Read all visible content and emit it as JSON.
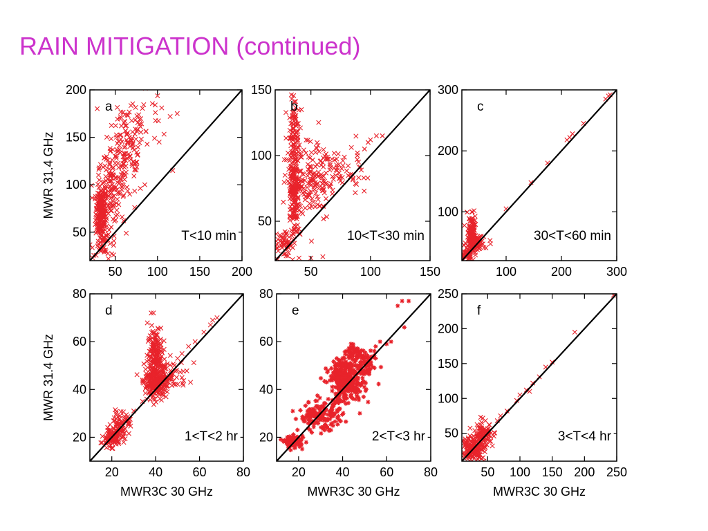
{
  "slide": {
    "title": "RAIN MITIGATION (continued)",
    "title_color": "#cc33cc"
  },
  "colors": {
    "marker": "#e8232b",
    "diagonal": "#000000",
    "frame": "#000000"
  },
  "chart_data": [
    {
      "type": "scatter",
      "panel": "a",
      "annotation": "T<10 min",
      "marker": "x",
      "xlabel": "",
      "ylabel": "MWR 31.4 GHz",
      "xlim": [
        20,
        200
      ],
      "ylim": [
        20,
        200
      ],
      "xticks": [
        50,
        100,
        150,
        200
      ],
      "yticks": [
        50,
        100,
        150,
        200
      ],
      "diagonal": true,
      "clusters": [
        {
          "x": 33,
          "y": 70,
          "sx": 3,
          "sy": 14,
          "n": 200
        },
        {
          "x": 45,
          "y": 95,
          "sx": 8,
          "sy": 18,
          "n": 120
        },
        {
          "x": 62,
          "y": 130,
          "sx": 12,
          "sy": 22,
          "n": 110
        },
        {
          "x": 80,
          "y": 165,
          "sx": 18,
          "sy": 15,
          "n": 45
        },
        {
          "x": 38,
          "y": 38,
          "sx": 8,
          "sy": 6,
          "n": 30
        }
      ],
      "points": [
        [
          105,
          181
        ],
        [
          115,
          172
        ],
        [
          102,
          145
        ],
        [
          118,
          115
        ],
        [
          85,
          100
        ],
        [
          42,
          22
        ],
        [
          48,
          26
        ],
        [
          33,
          30
        ],
        [
          23,
          23
        ],
        [
          60,
          62
        ],
        [
          73,
          76
        ]
      ]
    },
    {
      "type": "scatter",
      "panel": "b",
      "annotation": "10<T<30 min",
      "marker": "x",
      "xlabel": "",
      "ylabel": "",
      "xlim": [
        20,
        150
      ],
      "ylim": [
        20,
        150
      ],
      "xticks": [
        50,
        100,
        150
      ],
      "yticks": [
        50,
        100,
        150
      ],
      "diagonal": true,
      "clusters": [
        {
          "x": 36,
          "y": 72,
          "sx": 2.5,
          "sy": 16,
          "n": 200
        },
        {
          "x": 36,
          "y": 118,
          "sx": 2.5,
          "sy": 12,
          "n": 80
        },
        {
          "x": 52,
          "y": 80,
          "sx": 10,
          "sy": 14,
          "n": 150
        },
        {
          "x": 75,
          "y": 90,
          "sx": 12,
          "sy": 10,
          "n": 60
        },
        {
          "x": 28,
          "y": 32,
          "sx": 5,
          "sy": 5,
          "n": 50
        }
      ],
      "points": [
        [
          98,
          110
        ],
        [
          100,
          112
        ],
        [
          105,
          115
        ],
        [
          110,
          115
        ],
        [
          95,
          105
        ],
        [
          89,
          100
        ],
        [
          40,
          22
        ],
        [
          50,
          22
        ],
        [
          60,
          23
        ],
        [
          22,
          21
        ],
        [
          42,
          135
        ]
      ]
    },
    {
      "type": "scatter",
      "panel": "c",
      "annotation": "30<T<60 min",
      "marker": "x",
      "xlabel": "",
      "ylabel": "",
      "xlim": [
        20,
        300
      ],
      "ylim": [
        20,
        300
      ],
      "xticks": [
        100,
        200,
        300
      ],
      "yticks": [
        100,
        200,
        300
      ],
      "diagonal": true,
      "clusters": [
        {
          "x": 38,
          "y": 65,
          "sx": 4,
          "sy": 14,
          "n": 90
        },
        {
          "x": 45,
          "y": 48,
          "sx": 8,
          "sy": 7,
          "n": 80
        },
        {
          "x": 32,
          "y": 32,
          "sx": 5,
          "sy": 5,
          "n": 40
        }
      ],
      "points": [
        [
          100,
          105
        ],
        [
          145,
          148
        ],
        [
          175,
          180
        ],
        [
          210,
          218
        ],
        [
          215,
          222
        ],
        [
          220,
          228
        ],
        [
          240,
          245
        ],
        [
          280,
          285
        ],
        [
          285,
          290
        ],
        [
          288,
          292
        ],
        [
          38,
          100
        ],
        [
          42,
          102
        ],
        [
          55,
          60
        ]
      ]
    },
    {
      "type": "scatter",
      "panel": "d",
      "annotation": "1<T<2 hr",
      "marker": "x",
      "xlabel": "MWR3C 30 GHz",
      "ylabel": "MWR 31.4 GHz",
      "xlim": [
        10,
        80
      ],
      "ylim": [
        10,
        80
      ],
      "xticks": [
        20,
        40,
        60,
        80
      ],
      "yticks": [
        20,
        40,
        60,
        80
      ],
      "diagonal": true,
      "clusters": [
        {
          "x": 20,
          "y": 20,
          "sx": 2,
          "sy": 1.8,
          "n": 130
        },
        {
          "x": 25,
          "y": 26,
          "sx": 2,
          "sy": 2.5,
          "n": 60
        },
        {
          "x": 40,
          "y": 42,
          "sx": 2.5,
          "sy": 2.5,
          "n": 220
        },
        {
          "x": 40,
          "y": 55,
          "sx": 1.8,
          "sy": 6,
          "n": 170
        },
        {
          "x": 45,
          "y": 46,
          "sx": 5,
          "sy": 3,
          "n": 90
        }
      ],
      "points": [
        [
          55,
          58
        ],
        [
          58,
          60
        ],
        [
          62,
          64
        ],
        [
          65,
          67
        ],
        [
          68,
          70
        ],
        [
          66,
          69
        ],
        [
          52,
          55
        ],
        [
          50,
          53
        ],
        [
          30,
          31
        ],
        [
          34,
          35
        ],
        [
          39,
          72
        ]
      ]
    },
    {
      "type": "scatter",
      "panel": "e",
      "annotation": "2<T<3 hr",
      "marker": "*",
      "xlabel": "MWR3C 30 GHz",
      "ylabel": "",
      "xlim": [
        10,
        80
      ],
      "ylim": [
        10,
        80
      ],
      "xticks": [
        20,
        40,
        60,
        80
      ],
      "yticks": [
        20,
        40,
        60,
        80
      ],
      "diagonal": true,
      "clusters": [
        {
          "x": 18,
          "y": 18,
          "sx": 2,
          "sy": 1.2,
          "n": 90
        },
        {
          "x": 30,
          "y": 29,
          "sx": 5,
          "sy": 3,
          "n": 160
        },
        {
          "x": 42,
          "y": 42,
          "sx": 4,
          "sy": 3.5,
          "n": 240
        },
        {
          "x": 40,
          "y": 48,
          "sx": 2.5,
          "sy": 3,
          "n": 110
        },
        {
          "x": 50,
          "y": 50,
          "sx": 3,
          "sy": 2.5,
          "n": 90
        },
        {
          "x": 45,
          "y": 56,
          "sx": 2.5,
          "sy": 1.2,
          "n": 40
        }
      ],
      "points": [
        [
          55,
          58
        ],
        [
          57,
          60
        ],
        [
          60,
          59
        ],
        [
          62,
          60
        ],
        [
          65,
          75
        ],
        [
          67,
          77
        ],
        [
          70,
          77
        ],
        [
          68,
          66
        ],
        [
          55,
          53
        ],
        [
          22,
          20
        ],
        [
          26,
          22
        ]
      ]
    },
    {
      "type": "scatter",
      "panel": "f",
      "annotation": "3<T<4 hr",
      "marker": "x",
      "xlabel": "MWR3C 30 GHz",
      "ylabel": "",
      "xlim": [
        10,
        250
      ],
      "ylim": [
        10,
        250
      ],
      "xticks": [
        50,
        100,
        150,
        200,
        250
      ],
      "yticks": [
        50,
        100,
        150,
        200,
        250
      ],
      "diagonal": true,
      "clusters": [
        {
          "x": 28,
          "y": 28,
          "sx": 8,
          "sy": 8,
          "n": 180
        },
        {
          "x": 45,
          "y": 50,
          "sx": 8,
          "sy": 8,
          "n": 90
        }
      ],
      "points": [
        [
          70,
          75
        ],
        [
          80,
          82
        ],
        [
          95,
          97
        ],
        [
          100,
          105
        ],
        [
          110,
          112
        ],
        [
          115,
          110
        ],
        [
          120,
          122
        ],
        [
          130,
          131
        ],
        [
          140,
          145
        ],
        [
          150,
          152
        ],
        [
          185,
          195
        ],
        [
          245,
          248
        ],
        [
          65,
          68
        ]
      ]
    }
  ]
}
